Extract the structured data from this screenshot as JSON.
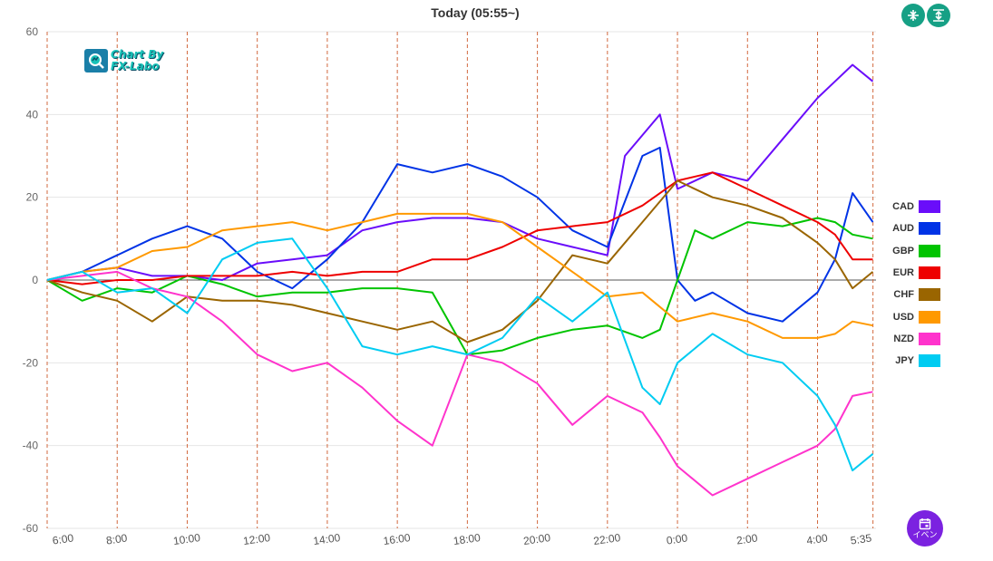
{
  "header": {
    "title": "Today  (05:55~)"
  },
  "toolbar": {
    "collapse_icon": "collapse-vertical-icon",
    "expand_icon": "expand-vertical-icon"
  },
  "event_button": {
    "icon": "calendar-icon",
    "label": "イベン"
  },
  "logo": {
    "line1": "Chart By",
    "line2": "FX-Labo"
  },
  "colors": {
    "CAD": "#6a0dfa",
    "AUD": "#0033e6",
    "GBP": "#00c400",
    "EUR": "#ee0000",
    "CHF": "#9a6500",
    "USD": "#ff9900",
    "NZD": "#ff33cc",
    "JPY": "#00ccf2",
    "vline": "#d2693f",
    "grid": "#e6e6e6",
    "zero": "#555555"
  },
  "chart_data": {
    "type": "line",
    "ylim": [
      -60,
      60
    ],
    "yticks": [
      60,
      40,
      20,
      0,
      -20,
      -40,
      -60
    ],
    "xlim": [
      0,
      23.67
    ],
    "xticks": [
      {
        "label": "6:00",
        "t": 0
      },
      {
        "label": "8:00",
        "t": 2
      },
      {
        "label": "10:00",
        "t": 4
      },
      {
        "label": "12:00",
        "t": 6
      },
      {
        "label": "14:00",
        "t": 8
      },
      {
        "label": "16:00",
        "t": 10
      },
      {
        "label": "18:00",
        "t": 12
      },
      {
        "label": "20:00",
        "t": 14
      },
      {
        "label": "22:00",
        "t": 16
      },
      {
        "label": "0:00",
        "t": 18
      },
      {
        "label": "2:00",
        "t": 20
      },
      {
        "label": "4:00",
        "t": 22
      },
      {
        "label": "5:35",
        "t": 23.583
      }
    ],
    "legend_position": "right",
    "series": [
      {
        "name": "CAD",
        "color": "#6a0dfa",
        "points": [
          [
            0,
            0
          ],
          [
            1,
            2
          ],
          [
            2,
            3
          ],
          [
            3,
            1
          ],
          [
            4,
            1
          ],
          [
            5,
            0
          ],
          [
            6,
            4
          ],
          [
            7,
            5
          ],
          [
            8,
            6
          ],
          [
            9,
            12
          ],
          [
            10,
            14
          ],
          [
            11,
            15
          ],
          [
            12,
            15
          ],
          [
            13,
            14
          ],
          [
            14,
            10
          ],
          [
            15,
            8
          ],
          [
            16,
            6
          ],
          [
            16.5,
            30
          ],
          [
            17.5,
            40
          ],
          [
            18,
            22
          ],
          [
            19,
            26
          ],
          [
            20,
            24
          ],
          [
            21,
            34
          ],
          [
            22,
            44
          ],
          [
            22.5,
            48
          ],
          [
            23,
            52
          ],
          [
            23.58,
            48
          ]
        ]
      },
      {
        "name": "AUD",
        "color": "#0033e6",
        "points": [
          [
            0,
            0
          ],
          [
            1,
            2
          ],
          [
            2,
            6
          ],
          [
            3,
            10
          ],
          [
            4,
            13
          ],
          [
            5,
            10
          ],
          [
            6,
            2
          ],
          [
            7,
            -2
          ],
          [
            8,
            5
          ],
          [
            9,
            14
          ],
          [
            10,
            28
          ],
          [
            11,
            26
          ],
          [
            12,
            28
          ],
          [
            13,
            25
          ],
          [
            14,
            20
          ],
          [
            15,
            12
          ],
          [
            16,
            8
          ],
          [
            17,
            30
          ],
          [
            17.5,
            32
          ],
          [
            18,
            0
          ],
          [
            18.5,
            -5
          ],
          [
            19,
            -3
          ],
          [
            20,
            -8
          ],
          [
            21,
            -10
          ],
          [
            22,
            -3
          ],
          [
            22.5,
            5
          ],
          [
            23,
            21
          ],
          [
            23.58,
            14
          ]
        ]
      },
      {
        "name": "GBP",
        "color": "#00c400",
        "points": [
          [
            0,
            0
          ],
          [
            1,
            -5
          ],
          [
            2,
            -2
          ],
          [
            3,
            -3
          ],
          [
            4,
            1
          ],
          [
            5,
            -1
          ],
          [
            6,
            -4
          ],
          [
            7,
            -3
          ],
          [
            8,
            -3
          ],
          [
            9,
            -2
          ],
          [
            10,
            -2
          ],
          [
            11,
            -3
          ],
          [
            12,
            -18
          ],
          [
            13,
            -17
          ],
          [
            14,
            -14
          ],
          [
            15,
            -12
          ],
          [
            16,
            -11
          ],
          [
            17,
            -14
          ],
          [
            17.5,
            -12
          ],
          [
            18,
            0
          ],
          [
            18.5,
            12
          ],
          [
            19,
            10
          ],
          [
            20,
            14
          ],
          [
            21,
            13
          ],
          [
            22,
            15
          ],
          [
            22.5,
            14
          ],
          [
            23,
            11
          ],
          [
            23.58,
            10
          ]
        ]
      },
      {
        "name": "EUR",
        "color": "#ee0000",
        "points": [
          [
            0,
            0
          ],
          [
            1,
            -1
          ],
          [
            2,
            0
          ],
          [
            3,
            0
          ],
          [
            4,
            1
          ],
          [
            5,
            1
          ],
          [
            6,
            1
          ],
          [
            7,
            2
          ],
          [
            8,
            1
          ],
          [
            9,
            2
          ],
          [
            10,
            2
          ],
          [
            11,
            5
          ],
          [
            12,
            5
          ],
          [
            13,
            8
          ],
          [
            14,
            12
          ],
          [
            15,
            13
          ],
          [
            16,
            14
          ],
          [
            17,
            18
          ],
          [
            18,
            24
          ],
          [
            19,
            26
          ],
          [
            20,
            22
          ],
          [
            21,
            18
          ],
          [
            22,
            14
          ],
          [
            22.5,
            11
          ],
          [
            23,
            5
          ],
          [
            23.58,
            5
          ]
        ]
      },
      {
        "name": "CHF",
        "color": "#9a6500",
        "points": [
          [
            0,
            0
          ],
          [
            1,
            -3
          ],
          [
            2,
            -5
          ],
          [
            3,
            -10
          ],
          [
            4,
            -4
          ],
          [
            5,
            -5
          ],
          [
            6,
            -5
          ],
          [
            7,
            -6
          ],
          [
            8,
            -8
          ],
          [
            9,
            -10
          ],
          [
            10,
            -12
          ],
          [
            11,
            -10
          ],
          [
            12,
            -15
          ],
          [
            13,
            -12
          ],
          [
            14,
            -5
          ],
          [
            15,
            6
          ],
          [
            16,
            4
          ],
          [
            17,
            14
          ],
          [
            18,
            24
          ],
          [
            19,
            20
          ],
          [
            20,
            18
          ],
          [
            21,
            15
          ],
          [
            22,
            9
          ],
          [
            22.5,
            5
          ],
          [
            23,
            -2
          ],
          [
            23.58,
            2
          ]
        ]
      },
      {
        "name": "USD",
        "color": "#ff9900",
        "points": [
          [
            0,
            0
          ],
          [
            1,
            2
          ],
          [
            2,
            3
          ],
          [
            3,
            7
          ],
          [
            4,
            8
          ],
          [
            5,
            12
          ],
          [
            6,
            13
          ],
          [
            7,
            14
          ],
          [
            8,
            12
          ],
          [
            9,
            14
          ],
          [
            10,
            16
          ],
          [
            11,
            16
          ],
          [
            12,
            16
          ],
          [
            13,
            14
          ],
          [
            14,
            8
          ],
          [
            15,
            2
          ],
          [
            16,
            -4
          ],
          [
            17,
            -3
          ],
          [
            18,
            -10
          ],
          [
            19,
            -8
          ],
          [
            20,
            -10
          ],
          [
            21,
            -14
          ],
          [
            22,
            -14
          ],
          [
            22.5,
            -13
          ],
          [
            23,
            -10
          ],
          [
            23.58,
            -11
          ]
        ]
      },
      {
        "name": "NZD",
        "color": "#ff33cc",
        "points": [
          [
            0,
            0
          ],
          [
            1,
            1
          ],
          [
            2,
            2
          ],
          [
            3,
            -2
          ],
          [
            4,
            -4
          ],
          [
            5,
            -10
          ],
          [
            6,
            -18
          ],
          [
            7,
            -22
          ],
          [
            8,
            -20
          ],
          [
            9,
            -26
          ],
          [
            10,
            -34
          ],
          [
            11,
            -40
          ],
          [
            12,
            -18
          ],
          [
            13,
            -20
          ],
          [
            14,
            -25
          ],
          [
            15,
            -35
          ],
          [
            16,
            -28
          ],
          [
            17,
            -32
          ],
          [
            17.5,
            -38
          ],
          [
            18,
            -45
          ],
          [
            19,
            -52
          ],
          [
            20,
            -48
          ],
          [
            21,
            -44
          ],
          [
            22,
            -40
          ],
          [
            22.5,
            -36
          ],
          [
            23,
            -28
          ],
          [
            23.58,
            -27
          ]
        ]
      },
      {
        "name": "JPY",
        "color": "#00ccf2",
        "points": [
          [
            0,
            0
          ],
          [
            1,
            2
          ],
          [
            2,
            -3
          ],
          [
            3,
            -2
          ],
          [
            4,
            -8
          ],
          [
            5,
            5
          ],
          [
            6,
            9
          ],
          [
            7,
            10
          ],
          [
            8,
            -2
          ],
          [
            9,
            -16
          ],
          [
            10,
            -18
          ],
          [
            11,
            -16
          ],
          [
            12,
            -18
          ],
          [
            13,
            -14
          ],
          [
            14,
            -4
          ],
          [
            15,
            -10
          ],
          [
            16,
            -3
          ],
          [
            17,
            -26
          ],
          [
            17.5,
            -30
          ],
          [
            18,
            -20
          ],
          [
            19,
            -13
          ],
          [
            20,
            -18
          ],
          [
            21,
            -20
          ],
          [
            22,
            -28
          ],
          [
            22.5,
            -35
          ],
          [
            23,
            -46
          ],
          [
            23.58,
            -42
          ]
        ]
      }
    ]
  }
}
